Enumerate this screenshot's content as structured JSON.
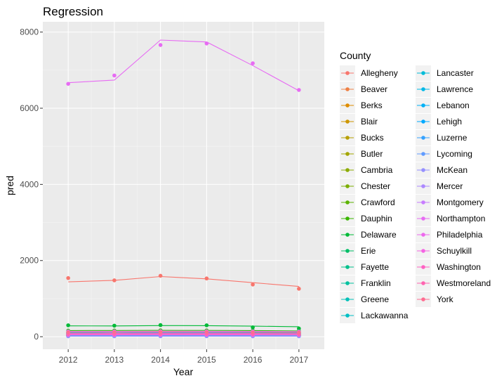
{
  "chart_data": {
    "type": "line",
    "title": "Regression",
    "xlabel": "Year",
    "ylabel": "pred",
    "x": [
      2012,
      2013,
      2014,
      2015,
      2016,
      2017
    ],
    "xlim": [
      2011.45,
      2017.55
    ],
    "ylim": [
      -330,
      8270
    ],
    "yticks": [
      0,
      2000,
      4000,
      6000,
      8000
    ],
    "grid": true,
    "legend_title": "County",
    "legend_position": "right",
    "series": [
      {
        "name": "Allegheny",
        "color": "#F8766D",
        "points": [
          1540,
          1480,
          1600,
          1530,
          1370,
          1260
        ],
        "line": [
          1440,
          1480,
          1580,
          1520,
          1420,
          1320
        ]
      },
      {
        "name": "Beaver",
        "color": "#EE8044",
        "points": [
          60,
          62,
          64,
          62,
          60,
          58
        ],
        "line": [
          60,
          61,
          63,
          62,
          60,
          58
        ]
      },
      {
        "name": "Berks",
        "color": "#DE8C00",
        "points": [
          130,
          132,
          136,
          134,
          130,
          126
        ],
        "line": [
          130,
          131,
          134,
          133,
          130,
          127
        ]
      },
      {
        "name": "Blair",
        "color": "#CD9600",
        "points": [
          40,
          41,
          42,
          41,
          40,
          39
        ],
        "line": [
          40,
          41,
          42,
          41,
          40,
          39
        ]
      },
      {
        "name": "Bucks",
        "color": "#B79F00",
        "points": [
          110,
          112,
          115,
          113,
          110,
          106
        ],
        "line": [
          110,
          111,
          114,
          112,
          110,
          107
        ]
      },
      {
        "name": "Butler",
        "color": "#A3A500",
        "points": [
          45,
          46,
          47,
          46,
          45,
          44
        ],
        "line": [
          45,
          46,
          47,
          46,
          45,
          44
        ]
      },
      {
        "name": "Cambria",
        "color": "#8CAB00",
        "points": [
          55,
          56,
          58,
          57,
          55,
          53
        ],
        "line": [
          55,
          56,
          57,
          56,
          55,
          53
        ]
      },
      {
        "name": "Chester",
        "color": "#7CAE00",
        "points": [
          80,
          81,
          84,
          83,
          81,
          78
        ],
        "line": [
          80,
          81,
          83,
          82,
          80,
          78
        ]
      },
      {
        "name": "Crawford",
        "color": "#5BB300",
        "points": [
          25,
          25,
          26,
          25,
          25,
          24
        ],
        "line": [
          25,
          25,
          26,
          25,
          25,
          24
        ]
      },
      {
        "name": "Dauphin",
        "color": "#39B600",
        "points": [
          160,
          162,
          168,
          165,
          160,
          150
        ],
        "line": [
          160,
          162,
          166,
          164,
          160,
          152
        ]
      },
      {
        "name": "Delaware",
        "color": "#00BA38",
        "points": [
          300,
          290,
          305,
          300,
          245,
          215
        ],
        "line": [
          285,
          282,
          292,
          290,
          278,
          262
        ]
      },
      {
        "name": "Erie",
        "color": "#00BE67",
        "points": [
          110,
          112,
          116,
          114,
          110,
          104
        ],
        "line": [
          110,
          111,
          114,
          113,
          110,
          106
        ]
      },
      {
        "name": "Fayette",
        "color": "#00C08B",
        "points": [
          70,
          71,
          73,
          72,
          70,
          67
        ],
        "line": [
          70,
          71,
          72,
          71,
          70,
          68
        ]
      },
      {
        "name": "Franklin",
        "color": "#00C19F",
        "points": [
          35,
          35,
          36,
          36,
          35,
          34
        ],
        "line": [
          35,
          35,
          36,
          36,
          35,
          34
        ]
      },
      {
        "name": "Greene",
        "color": "#00C0B8",
        "points": [
          15,
          15,
          16,
          16,
          15,
          15
        ],
        "line": [
          15,
          15,
          16,
          16,
          15,
          15
        ]
      },
      {
        "name": "Lackawanna",
        "color": "#00BFC4",
        "points": [
          75,
          76,
          79,
          78,
          75,
          72
        ],
        "line": [
          75,
          76,
          78,
          77,
          75,
          72
        ]
      },
      {
        "name": "Lancaster",
        "color": "#00BCD8",
        "points": [
          95,
          96,
          99,
          98,
          95,
          91
        ],
        "line": [
          95,
          96,
          98,
          97,
          95,
          92
        ]
      },
      {
        "name": "Lawrence",
        "color": "#00B8E7",
        "points": [
          30,
          30,
          31,
          31,
          30,
          29
        ],
        "line": [
          30,
          30,
          31,
          31,
          30,
          29
        ]
      },
      {
        "name": "Lebanon",
        "color": "#00B0F6",
        "points": [
          28,
          28,
          29,
          29,
          28,
          27
        ],
        "line": [
          28,
          28,
          29,
          29,
          28,
          27
        ]
      },
      {
        "name": "Lehigh",
        "color": "#00A9FF",
        "points": [
          90,
          91,
          94,
          93,
          90,
          86
        ],
        "line": [
          90,
          91,
          93,
          92,
          90,
          87
        ]
      },
      {
        "name": "Luzerne",
        "color": "#35A2FF",
        "points": [
          100,
          102,
          105,
          103,
          100,
          96
        ],
        "line": [
          100,
          101,
          104,
          102,
          100,
          97
        ]
      },
      {
        "name": "Lycoming",
        "color": "#619CFF",
        "points": [
          40,
          120,
          42,
          41,
          40,
          38
        ],
        "line": [
          40,
          110,
          43,
          41,
          40,
          38
        ]
      },
      {
        "name": "McKean",
        "color": "#9590FF",
        "points": [
          12,
          12,
          13,
          13,
          12,
          12
        ],
        "line": [
          12,
          12,
          13,
          13,
          12,
          12
        ]
      },
      {
        "name": "Mercer",
        "color": "#AC88FF",
        "points": [
          38,
          38,
          39,
          39,
          38,
          37
        ],
        "line": [
          38,
          38,
          39,
          39,
          38,
          37
        ]
      },
      {
        "name": "Montgomery",
        "color": "#C77CFF",
        "points": [
          140,
          142,
          146,
          144,
          140,
          134
        ],
        "line": [
          140,
          141,
          145,
          143,
          140,
          135
        ]
      },
      {
        "name": "Northampton",
        "color": "#E76BF3",
        "points": [
          6640,
          6860,
          7660,
          7700,
          7180,
          6480
        ],
        "line": [
          6670,
          6740,
          7790,
          7740,
          7120,
          6460
        ]
      },
      {
        "name": "Philadelphia",
        "color": "#ED68ED",
        "points": [
          65,
          66,
          68,
          67,
          65,
          62
        ],
        "line": [
          65,
          66,
          67,
          66,
          65,
          63
        ]
      },
      {
        "name": "Schuylkill",
        "color": "#F564E3",
        "points": [
          50,
          51,
          53,
          52,
          50,
          48
        ],
        "line": [
          50,
          51,
          52,
          51,
          50,
          48
        ]
      },
      {
        "name": "Washington",
        "color": "#FF61C3",
        "points": [
          58,
          59,
          61,
          60,
          58,
          55
        ],
        "line": [
          58,
          59,
          60,
          59,
          58,
          56
        ]
      },
      {
        "name": "Westmoreland",
        "color": "#FF64B0",
        "points": [
          85,
          86,
          89,
          88,
          85,
          81
        ],
        "line": [
          85,
          86,
          88,
          87,
          85,
          82
        ]
      },
      {
        "name": "York",
        "color": "#FF6C91",
        "points": [
          120,
          122,
          126,
          124,
          120,
          114
        ],
        "line": [
          120,
          121,
          124,
          122,
          120,
          116
        ]
      }
    ]
  }
}
